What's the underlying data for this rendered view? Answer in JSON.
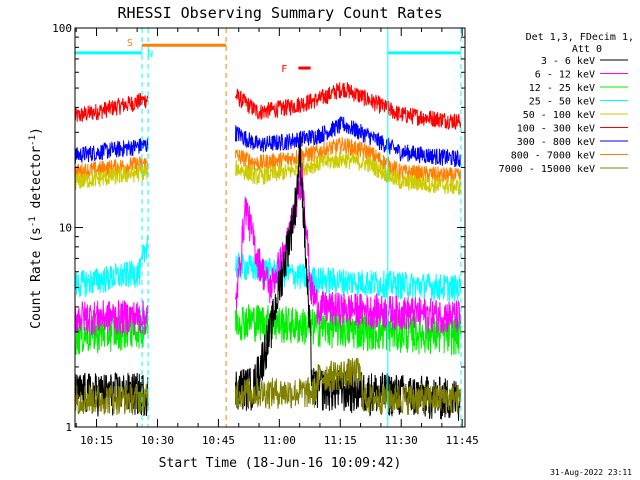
{
  "chart_data": {
    "type": "line",
    "title": "RHESSI Observing Summary Count Rates",
    "xlabel": "Start Time (18-Jun-16 10:09:42)",
    "ylabel": "Count Rate (s",
    "ylabel_sup": "-1",
    "ylabel_tail": " detector",
    "ylabel_sup2": "-1",
    "ylabel_close": ")",
    "y_scale": "log",
    "ylim": [
      1,
      100
    ],
    "xlim_minutes": [
      0,
      96
    ],
    "y_ticks": [
      {
        "value": 1,
        "label": "1"
      },
      {
        "value": 10,
        "label": "10"
      },
      {
        "value": 100,
        "label": "100"
      }
    ],
    "x_ticks": [
      {
        "minute": 5.3,
        "label": "10:15"
      },
      {
        "minute": 20.3,
        "label": "10:30"
      },
      {
        "minute": 35.3,
        "label": "10:45"
      },
      {
        "minute": 50.3,
        "label": "11:00"
      },
      {
        "minute": 65.3,
        "label": "11:15"
      },
      {
        "minute": 80.3,
        "label": "11:30"
      },
      {
        "minute": 95.3,
        "label": "11:45"
      }
    ],
    "legend": {
      "position": "right",
      "header_lines": [
        "Det 1,3, FDecim 1,",
        "Att 0"
      ],
      "entries": [
        {
          "label": "3 - 6 keV",
          "color": "#000000"
        },
        {
          "label": "6 - 12 keV",
          "color": "#ff00ff"
        },
        {
          "label": "12 - 25 keV",
          "color": "#00ee00"
        },
        {
          "label": "25 - 50 keV",
          "color": "#00ffff"
        },
        {
          "label": "50 - 100 keV",
          "color": "#cccc00"
        },
        {
          "label": "100 - 300 keV",
          "color": "#ff0000"
        },
        {
          "label": "300 - 800 keV",
          "color": "#0000ff"
        },
        {
          "label": "800 - 7000 keV",
          "color": "#ff8000"
        },
        {
          "label": "7000 - 15000 keV",
          "color": "#808000"
        }
      ]
    },
    "segments_minutes": [
      [
        0,
        18
      ],
      [
        39.5,
        95
      ]
    ],
    "series": [
      {
        "color": "#ff0000",
        "level": [
          [
            0,
            36
          ],
          [
            18,
            44
          ],
          [
            39.5,
            46
          ],
          [
            45,
            38
          ],
          [
            52,
            40
          ],
          [
            60,
            44
          ],
          [
            66,
            50
          ],
          [
            72,
            44
          ],
          [
            80,
            37
          ],
          [
            95,
            34
          ]
        ],
        "noise": 0.1
      },
      {
        "color": "#0000ff",
        "level": [
          [
            0,
            23
          ],
          [
            18,
            26
          ],
          [
            39.5,
            30
          ],
          [
            45,
            26
          ],
          [
            52,
            27
          ],
          [
            60,
            29
          ],
          [
            66,
            33
          ],
          [
            72,
            29
          ],
          [
            80,
            24
          ],
          [
            95,
            22
          ]
        ],
        "noise": 0.1
      },
      {
        "color": "#ff8000",
        "level": [
          [
            0,
            19
          ],
          [
            18,
            21
          ],
          [
            39.5,
            23
          ],
          [
            45,
            21
          ],
          [
            52,
            22
          ],
          [
            60,
            24
          ],
          [
            66,
            26
          ],
          [
            72,
            24
          ],
          [
            80,
            19
          ],
          [
            95,
            18
          ]
        ],
        "noise": 0.1
      },
      {
        "color": "#cccc00",
        "level": [
          [
            0,
            17
          ],
          [
            18,
            19
          ],
          [
            39.5,
            20
          ],
          [
            45,
            18
          ],
          [
            52,
            19
          ],
          [
            60,
            21
          ],
          [
            66,
            22
          ],
          [
            72,
            21
          ],
          [
            80,
            17
          ],
          [
            95,
            16
          ]
        ],
        "noise": 0.1
      },
      {
        "color": "#00ffff",
        "level": [
          [
            0,
            5.2
          ],
          [
            16,
            6
          ],
          [
            18,
            9
          ],
          [
            39.5,
            6.5
          ],
          [
            50,
            6
          ],
          [
            60,
            5.5
          ],
          [
            80,
            5.2
          ],
          [
            95,
            5
          ]
        ],
        "noise": 0.16
      },
      {
        "color": "#00ee00",
        "level": [
          [
            0,
            2.9
          ],
          [
            18,
            3.2
          ],
          [
            39.5,
            3.5
          ],
          [
            60,
            3.2
          ],
          [
            80,
            3
          ],
          [
            95,
            2.9
          ]
        ],
        "noise": 0.22
      },
      {
        "color": "#ff00ff",
        "level": [
          [
            0,
            3.6
          ],
          [
            18,
            3.6
          ],
          [
            39.5,
            4
          ],
          [
            42,
            13
          ],
          [
            45,
            7
          ],
          [
            48,
            5
          ],
          [
            52,
            8
          ],
          [
            56,
            19
          ],
          [
            58,
            5
          ],
          [
            60,
            4
          ],
          [
            80,
            3.8
          ],
          [
            95,
            3.6
          ]
        ],
        "noise": 0.2
      },
      {
        "color": "#000000",
        "level": [
          [
            0,
            1.5
          ],
          [
            18,
            1.5
          ],
          [
            39.5,
            1.6
          ],
          [
            44,
            1.6
          ],
          [
            48,
            3
          ],
          [
            51,
            6
          ],
          [
            54,
            12
          ],
          [
            55.5,
            24
          ],
          [
            57,
            6
          ],
          [
            58.5,
            1.6
          ],
          [
            95,
            1.4
          ]
        ],
        "noise": 0.25
      },
      {
        "color": "#808000",
        "level": [
          [
            0,
            1.4
          ],
          [
            18,
            1.4
          ],
          [
            39.5,
            1.5
          ],
          [
            59,
            1.5
          ],
          [
            60,
            1.8
          ],
          [
            70,
            1.9
          ],
          [
            71,
            1.4
          ],
          [
            95,
            1.4
          ]
        ],
        "noise": 0.18
      }
    ],
    "saa_bars_minutes": [
      [
        0,
        16.5
      ],
      [
        77,
        95
      ]
    ],
    "saa_color": "#00ffff",
    "night_bar_minutes": [
      16.5,
      37.2
    ],
    "night_color": "#ff8000",
    "flare_bar_minutes": [
      55,
      58
    ],
    "flare_color": "#ff0000",
    "markers": [
      {
        "label": "S",
        "minute": 13.5,
        "color": "#ff8000",
        "value": 85
      },
      {
        "label": "N",
        "minute": 18.5,
        "color": "#00ffff",
        "value": 75
      },
      {
        "label": "F",
        "minute": 51.5,
        "color": "#ff0000",
        "value": 63
      }
    ],
    "dashed_lines": [
      {
        "minute": 16.5,
        "color": "#00ffff"
      },
      {
        "minute": 18,
        "color": "#00ffff"
      },
      {
        "minute": 37.2,
        "color": "#ff8000"
      },
      {
        "minute": 95,
        "color": "#00ffff"
      }
    ],
    "solid_lines": [
      {
        "minute": 0,
        "color": "#00ffff"
      },
      {
        "minute": 77,
        "color": "#00ffff"
      }
    ],
    "timestamp": "31-Aug-2022 23:11"
  }
}
